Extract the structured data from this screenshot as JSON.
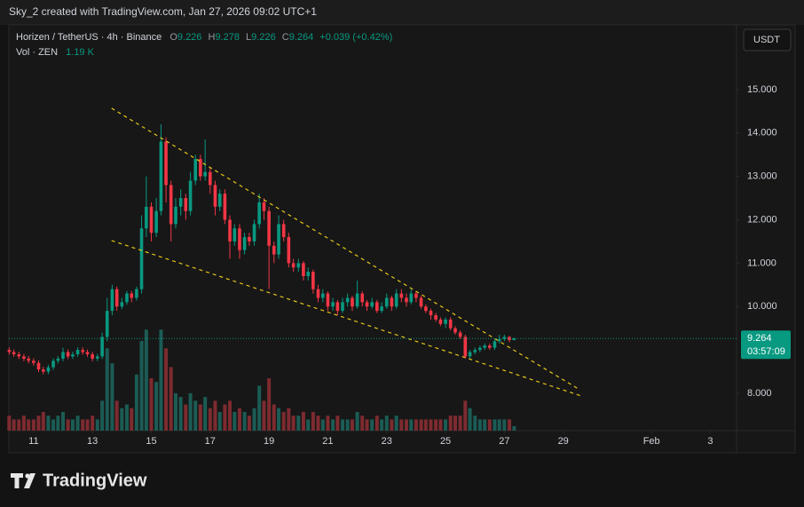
{
  "watermark": "Sky_2 created with TradingView.com, Jan 27, 2026 09:02 UTC+1",
  "brand": "TradingView",
  "currency_button": "USDT",
  "header": {
    "symbol": "Horizen / TetherUS · 4h · Binance",
    "o": "O",
    "h": "H",
    "l": "L",
    "c": "C",
    "change_label": "+0.039 (+0.42%)",
    "vol_name": "Vol · ZEN",
    "volume_label": "1.19 K"
  },
  "chart_data": {
    "type": "candlestick",
    "up_color": "#089981",
    "down_color": "#f23645",
    "volume_up_color": "#1b5c55",
    "volume_down_color": "#7d2b30",
    "trendline_color": "#e6c619",
    "countdown": "03:57:09",
    "xlim": [
      10.16,
      34.89
    ],
    "xticks": [
      11,
      13,
      15,
      17,
      19,
      21,
      23,
      25,
      27,
      29,
      {
        "value": 32,
        "label": "Feb"
      },
      {
        "value": 34,
        "label": "3"
      }
    ],
    "ylim": [
      7.14,
      16.45
    ],
    "yticks": [
      {
        "value": 8,
        "label": "8.000"
      },
      {
        "value": 10,
        "label": "10.000"
      },
      {
        "value": 11,
        "label": "11.000"
      },
      {
        "value": 12,
        "label": "12.000"
      },
      {
        "value": 13,
        "label": "13.000"
      },
      {
        "value": 14,
        "label": "14.000"
      },
      {
        "value": 15,
        "label": "15.000"
      }
    ],
    "volume_ylim": [
      0,
      108
    ],
    "candles": {
      "x": [
        10.17,
        10.33,
        10.5,
        10.67,
        10.83,
        11,
        11.17,
        11.33,
        11.5,
        11.67,
        11.83,
        12,
        12.17,
        12.33,
        12.5,
        12.67,
        12.83,
        13,
        13.17,
        13.33,
        13.5,
        13.67,
        13.83,
        14,
        14.17,
        14.33,
        14.5,
        14.67,
        14.83,
        15,
        15.17,
        15.33,
        15.5,
        15.67,
        15.83,
        16,
        16.17,
        16.33,
        16.5,
        16.67,
        16.83,
        17,
        17.17,
        17.33,
        17.5,
        17.67,
        17.83,
        18,
        18.17,
        18.33,
        18.5,
        18.67,
        18.83,
        19,
        19.17,
        19.33,
        19.5,
        19.67,
        19.83,
        20,
        20.17,
        20.33,
        20.5,
        20.67,
        20.83,
        21,
        21.17,
        21.33,
        21.5,
        21.67,
        21.83,
        22,
        22.17,
        22.33,
        22.5,
        22.67,
        22.83,
        23,
        23.17,
        23.33,
        23.5,
        23.67,
        23.83,
        24,
        24.17,
        24.33,
        24.5,
        24.67,
        24.83,
        25,
        25.17,
        25.33,
        25.5,
        25.67,
        25.83,
        26,
        26.17,
        26.33,
        26.5,
        26.67,
        26.83,
        27,
        27.17,
        27.33
      ],
      "open": [
        9.0,
        8.95,
        8.9,
        8.85,
        8.8,
        8.75,
        8.7,
        8.55,
        8.5,
        8.6,
        8.75,
        8.8,
        8.95,
        8.85,
        8.9,
        9.0,
        8.95,
        8.9,
        8.8,
        8.85,
        9.3,
        9.9,
        10.4,
        10.0,
        10.1,
        10.3,
        10.2,
        10.4,
        11.8,
        12.3,
        11.7,
        12.2,
        13.8,
        12.8,
        11.9,
        12.3,
        12.5,
        12.2,
        12.9,
        13.4,
        13.0,
        13.1,
        12.8,
        12.3,
        12.6,
        12.0,
        11.5,
        11.8,
        11.3,
        11.6,
        11.5,
        11.9,
        12.4,
        12.2,
        11.4,
        11.2,
        11.9,
        11.6,
        11.0,
        10.9,
        11.0,
        10.7,
        10.8,
        10.4,
        10.2,
        10.3,
        10.0,
        10.1,
        9.9,
        10.1,
        10.2,
        10.0,
        10.3,
        10.1,
        10.0,
        10.1,
        9.9,
        10.0,
        10.2,
        10.0,
        10.3,
        10.2,
        10.1,
        10.3,
        10.2,
        10.0,
        9.9,
        9.8,
        9.7,
        9.6,
        9.7,
        9.5,
        9.4,
        9.3,
        8.85,
        8.95,
        9.0,
        9.05,
        9.1,
        9.05,
        9.2,
        9.25,
        9.3,
        9.226
      ],
      "high": [
        9.06,
        9.01,
        8.96,
        8.91,
        8.86,
        8.81,
        8.76,
        8.61,
        8.66,
        8.81,
        8.86,
        9.05,
        9.01,
        8.96,
        9.06,
        9.06,
        9.01,
        8.96,
        8.91,
        9.4,
        10.2,
        10.5,
        10.46,
        10.2,
        10.36,
        10.36,
        10.46,
        12.1,
        13.0,
        12.4,
        12.5,
        14.2,
        13.9,
        12.9,
        12.5,
        12.7,
        12.6,
        13.1,
        13.5,
        13.5,
        13.85,
        13.2,
        12.9,
        12.7,
        12.7,
        12.1,
        11.9,
        11.9,
        11.7,
        11.7,
        12.0,
        12.6,
        12.5,
        12.3,
        11.5,
        12.1,
        12.0,
        11.7,
        11.1,
        11.1,
        11.05,
        10.9,
        10.85,
        10.5,
        10.4,
        10.35,
        10.2,
        10.15,
        10.2,
        10.3,
        10.25,
        10.6,
        10.35,
        10.15,
        10.2,
        10.15,
        10.1,
        10.3,
        10.25,
        10.4,
        10.4,
        10.3,
        10.4,
        10.35,
        10.25,
        10.05,
        9.95,
        9.85,
        9.75,
        9.75,
        9.75,
        9.55,
        9.45,
        9.35,
        9.0,
        9.05,
        9.1,
        9.15,
        9.15,
        9.25,
        9.35,
        9.35,
        9.32,
        9.278
      ],
      "low": [
        8.89,
        8.84,
        8.79,
        8.74,
        8.69,
        8.64,
        8.49,
        8.44,
        8.44,
        8.54,
        8.69,
        8.74,
        8.79,
        8.79,
        8.84,
        8.89,
        8.84,
        8.74,
        8.74,
        8.79,
        9.2,
        9.8,
        9.9,
        9.94,
        10.04,
        10.1,
        10.14,
        10.3,
        11.6,
        11.5,
        11.6,
        12.1,
        12.4,
        11.5,
        11.8,
        12.1,
        12.0,
        12.1,
        12.8,
        12.9,
        12.9,
        12.6,
        12.1,
        12.2,
        11.9,
        11.1,
        11.4,
        11.1,
        11.2,
        11.4,
        11.4,
        11.8,
        12.0,
        10.4,
        11.0,
        11.1,
        11.5,
        10.9,
        10.8,
        10.8,
        10.6,
        10.6,
        10.3,
        10.1,
        10.1,
        9.9,
        9.9,
        9.8,
        9.85,
        10.0,
        9.9,
        9.95,
        10.0,
        9.9,
        9.95,
        9.85,
        9.85,
        9.95,
        9.9,
        9.95,
        10.1,
        10.0,
        10.05,
        10.1,
        9.95,
        9.85,
        9.7,
        9.65,
        9.55,
        9.5,
        9.45,
        9.35,
        9.25,
        8.8,
        8.8,
        8.9,
        8.95,
        9.0,
        9.0,
        9.0,
        9.15,
        9.2,
        9.18,
        9.226
      ],
      "close": [
        8.95,
        8.9,
        8.85,
        8.8,
        8.75,
        8.7,
        8.55,
        8.5,
        8.6,
        8.75,
        8.8,
        8.95,
        8.85,
        8.9,
        9.0,
        8.95,
        8.9,
        8.8,
        8.85,
        9.3,
        9.9,
        10.4,
        10.0,
        10.1,
        10.3,
        10.2,
        10.4,
        11.8,
        12.3,
        11.7,
        12.2,
        13.8,
        12.8,
        11.9,
        12.3,
        12.5,
        12.2,
        12.9,
        13.4,
        13.0,
        13.1,
        12.8,
        12.3,
        12.6,
        12.0,
        11.5,
        11.8,
        11.3,
        11.6,
        11.5,
        11.9,
        12.4,
        12.2,
        11.4,
        11.2,
        11.9,
        11.6,
        11.0,
        10.9,
        11.0,
        10.7,
        10.8,
        10.4,
        10.2,
        10.3,
        10.0,
        10.1,
        9.9,
        10.1,
        10.2,
        10.0,
        10.3,
        10.1,
        10.0,
        10.1,
        9.9,
        10.0,
        10.2,
        10.0,
        10.3,
        10.2,
        10.1,
        10.3,
        10.2,
        10.0,
        9.9,
        9.8,
        9.7,
        9.6,
        9.7,
        9.5,
        9.4,
        9.3,
        8.85,
        8.95,
        9.0,
        9.05,
        9.1,
        9.05,
        9.2,
        9.25,
        9.3,
        9.226,
        9.264
      ],
      "volume": [
        4,
        3,
        3,
        4,
        3,
        3,
        4,
        5,
        4,
        3,
        4,
        5,
        3,
        3,
        4,
        3,
        3,
        4,
        3,
        8,
        22,
        18,
        8,
        6,
        7,
        6,
        15,
        24,
        27,
        14,
        13,
        27,
        22,
        17,
        10,
        9,
        7,
        10,
        8,
        7,
        9,
        6,
        8,
        5,
        7,
        8,
        5,
        6,
        5,
        4,
        6,
        12,
        8,
        14,
        7,
        6,
        5,
        6,
        4,
        4,
        5,
        3,
        5,
        4,
        3,
        4,
        3,
        4,
        3,
        3,
        3,
        5,
        4,
        3,
        3,
        4,
        3,
        4,
        3,
        4,
        3,
        3,
        3,
        3,
        3,
        3,
        3,
        3,
        3,
        3,
        4,
        4,
        4,
        8,
        6,
        4,
        3,
        3,
        3,
        3,
        3,
        3,
        3,
        1.19
      ]
    },
    "trendlines": [
      {
        "x": [
          13.65,
          29.52
        ],
        "y": [
          14.57,
          8.1
        ]
      },
      {
        "x": [
          13.65,
          29.61
        ],
        "y": [
          11.52,
          7.94
        ]
      }
    ]
  }
}
